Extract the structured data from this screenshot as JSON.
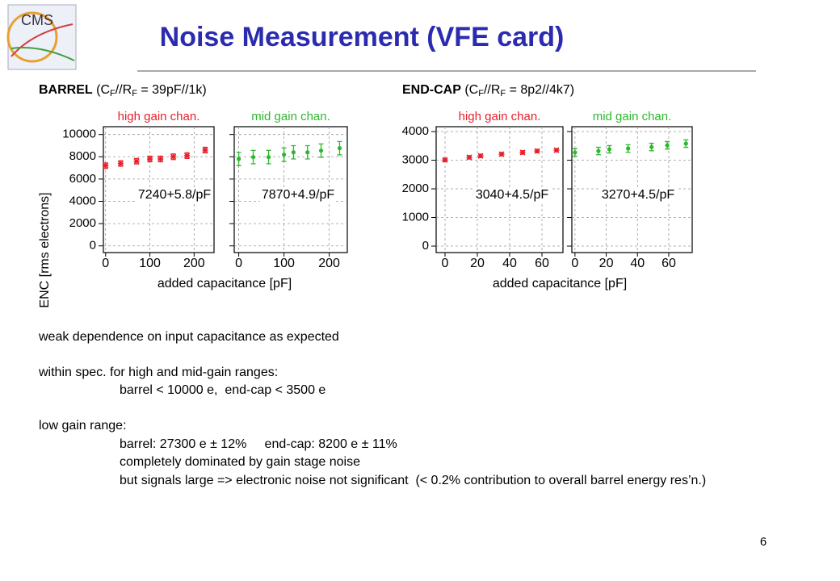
{
  "header": {
    "title": "Noise Measurement (VFE card)",
    "logo_text": "CMS"
  },
  "sections": [
    {
      "parts": [
        "BARREL",
        " (C",
        "F",
        "//R",
        "F",
        " = 39pF//1k)"
      ]
    },
    {
      "parts": [
        "END-CAP",
        " (C",
        "F",
        "//R",
        "F",
        " = 8p2//4k7)"
      ]
    }
  ],
  "chart_data": [
    {
      "type": "scatter",
      "y_label": "ENC [rms electrons]",
      "x_label": "added capacitance [pF]",
      "fit_label": "7240+5.8/pF",
      "xlim": [
        -5,
        245
      ],
      "ylim": [
        -600,
        10700
      ],
      "xticks": [
        0,
        100,
        200
      ],
      "yticks": [
        0,
        2000,
        4000,
        6000,
        8000,
        10000
      ],
      "ytick_labels": true,
      "grid": true,
      "series": [
        {
          "name": "high gain chan.",
          "color": "#e8202a",
          "marker": "x",
          "x": [
            0,
            34,
            70,
            100,
            124,
            153,
            184,
            225
          ],
          "values": [
            7200,
            7400,
            7600,
            7800,
            7800,
            8000,
            8100,
            8600
          ],
          "errors": [
            250,
            250,
            250,
            250,
            250,
            250,
            250,
            250
          ]
        }
      ]
    },
    {
      "type": "scatter",
      "fit_label": "7870+4.9/pF",
      "xlim": [
        -10,
        240
      ],
      "ylim": [
        -600,
        10700
      ],
      "xticks": [
        0,
        100,
        200
      ],
      "yticks": [
        0,
        2000,
        4000,
        6000,
        8000,
        10000
      ],
      "ytick_labels": false,
      "grid": true,
      "series": [
        {
          "name": "mid gain chan.",
          "color": "#2db82d",
          "marker": "o",
          "x": [
            0,
            32,
            66,
            100,
            121,
            152,
            182,
            223
          ],
          "values": [
            7800,
            7970,
            7970,
            8190,
            8400,
            8400,
            8550,
            8770
          ],
          "errors": [
            600,
            600,
            600,
            600,
            600,
            600,
            600,
            600
          ]
        }
      ]
    },
    {
      "type": "scatter",
      "x_label": "added capacitance [pF]",
      "fit_label": "3040+4.5/pF",
      "xlim": [
        -5.5,
        73
      ],
      "ylim": [
        -225,
        4170
      ],
      "xticks": [
        0,
        20,
        40,
        60
      ],
      "yticks": [
        0,
        1000,
        2000,
        3000,
        4000
      ],
      "ytick_labels": true,
      "grid": true,
      "series": [
        {
          "name": "high gain chan.",
          "color": "#e8202a",
          "marker": "x",
          "x": [
            0,
            15,
            22,
            35,
            48,
            57,
            69
          ],
          "values": [
            3010,
            3100,
            3150,
            3210,
            3270,
            3320,
            3350
          ],
          "errors": [
            60,
            60,
            60,
            60,
            60,
            60,
            60
          ]
        }
      ]
    },
    {
      "type": "scatter",
      "fit_label": "3270+4.5/pF",
      "xlim": [
        -2,
        75
      ],
      "ylim": [
        -225,
        4170
      ],
      "xticks": [
        0,
        20,
        40,
        60
      ],
      "yticks": [
        0,
        1000,
        2000,
        3000,
        4000
      ],
      "ytick_labels": false,
      "grid": true,
      "series": [
        {
          "name": "mid gain chan.",
          "color": "#2db82d",
          "marker": "o",
          "x": [
            0,
            15,
            22,
            34,
            49,
            59,
            71
          ],
          "values": [
            3270,
            3320,
            3380,
            3410,
            3460,
            3520,
            3580
          ],
          "errors": [
            130,
            130,
            130,
            130,
            130,
            130,
            130
          ]
        }
      ]
    }
  ],
  "body": {
    "line1": "weak dependence on input capacitance as expected",
    "line2": "within spec. for high and mid-gain ranges:",
    "line3": "barrel < 10000 e,  end-cap < 3500 e",
    "line4": "low gain range:",
    "line5": "barrel: 27300 e ± 12%     end-cap: 8200 e ± 11%",
    "line6": "completely dominated by gain stage noise",
    "line7": "but signals large => electronic noise not significant  (< 0.2% contribution to overall barrel energy res’n.)"
  },
  "page_number": "6"
}
